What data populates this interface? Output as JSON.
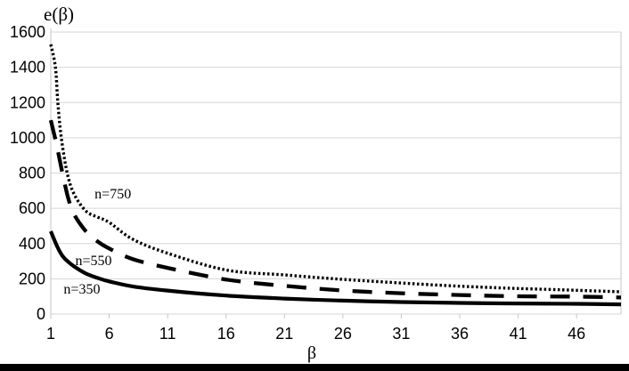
{
  "page": {
    "background": "#ffffff",
    "bottom_bar_color": "#000000"
  },
  "chart_data": {
    "type": "line",
    "title": "",
    "xlabel": "β",
    "ylabel": "e(β)",
    "x_ticks": [
      1,
      6,
      11,
      16,
      21,
      26,
      31,
      36,
      41,
      46
    ],
    "y_ticks": [
      0,
      200,
      400,
      600,
      800,
      1000,
      1200,
      1400,
      1600
    ],
    "xlim": [
      1,
      49.8
    ],
    "ylim": [
      0,
      1600
    ],
    "grid": "horizontal-only",
    "grid_color": "#d6d6d6",
    "axis_color": "#c6c6c6",
    "line_color": "#000000",
    "legend_position": "inline-labels",
    "series": [
      {
        "name": "n=350",
        "style": "solid",
        "stroke_width": 4.2,
        "dash": "",
        "label": {
          "text": "n=350",
          "beta": 2.1,
          "value": 116
        },
        "points": [
          [
            1,
            470
          ],
          [
            1.5,
            390
          ],
          [
            2,
            330
          ],
          [
            2.5,
            296
          ],
          [
            3,
            270
          ],
          [
            4,
            230
          ],
          [
            5,
            205
          ],
          [
            6,
            185
          ],
          [
            8,
            157
          ],
          [
            11,
            133
          ],
          [
            16,
            105
          ],
          [
            21,
            88
          ],
          [
            26,
            76
          ],
          [
            31,
            68
          ],
          [
            36,
            63
          ],
          [
            41,
            60
          ],
          [
            46,
            58
          ],
          [
            49.8,
            55
          ]
        ]
      },
      {
        "name": "n=550",
        "style": "dashed",
        "stroke_width": 4.3,
        "dash": "22 15",
        "label": {
          "text": "n=550",
          "beta": 3.1,
          "value": 278
        },
        "points": [
          [
            1,
            1100
          ],
          [
            1.5,
            960
          ],
          [
            2,
            800
          ],
          [
            2.5,
            655
          ],
          [
            3,
            565
          ],
          [
            4,
            470
          ],
          [
            5,
            412
          ],
          [
            6,
            372
          ],
          [
            8,
            312
          ],
          [
            11,
            262
          ],
          [
            16,
            196
          ],
          [
            21,
            160
          ],
          [
            26,
            134
          ],
          [
            31,
            118
          ],
          [
            36,
            108
          ],
          [
            41,
            101
          ],
          [
            46,
            99
          ],
          [
            49.8,
            94
          ]
        ]
      },
      {
        "name": "n=750",
        "style": "dotted",
        "stroke_width": 3.4,
        "dash": "2.5 2.6",
        "label": {
          "text": "n=750",
          "beta": 4.75,
          "value": 656
        },
        "points": [
          [
            1,
            1530
          ],
          [
            1.4,
            1400
          ],
          [
            1.6,
            1200
          ],
          [
            1.9,
            1000
          ],
          [
            2.4,
            800
          ],
          [
            3,
            680
          ],
          [
            4,
            585
          ],
          [
            5,
            550
          ],
          [
            6,
            520
          ],
          [
            8,
            425
          ],
          [
            11,
            345
          ],
          [
            16,
            250
          ],
          [
            21,
            222
          ],
          [
            26,
            197
          ],
          [
            31,
            176
          ],
          [
            36,
            158
          ],
          [
            41,
            145
          ],
          [
            46,
            135
          ],
          [
            49.8,
            126
          ]
        ]
      }
    ]
  }
}
